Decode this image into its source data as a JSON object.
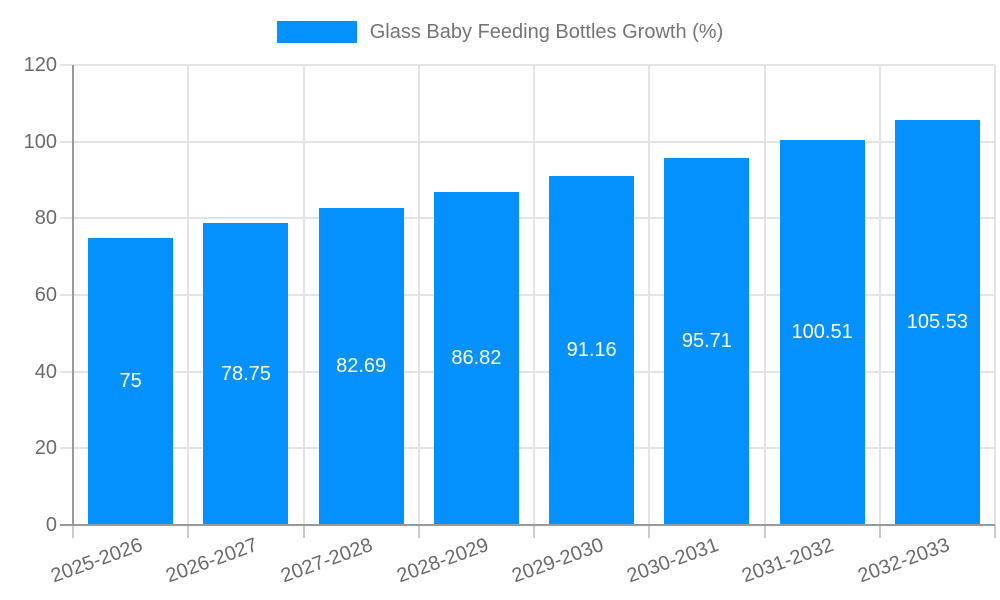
{
  "chart_data": {
    "type": "bar",
    "title": "Glass Baby Feeding Bottles Growth (%)",
    "legend": {
      "position": "top-center",
      "entries": [
        "Glass Baby Feeding Bottles Growth (%)"
      ]
    },
    "categories": [
      "2025-2026",
      "2026-2027",
      "2027-2028",
      "2028-2029",
      "2029-2030",
      "2030-2031",
      "2031-2032",
      "2032-2033"
    ],
    "values": [
      75,
      78.75,
      82.69,
      86.82,
      91.16,
      95.71,
      100.51,
      105.53
    ],
    "value_labels": [
      "75",
      "78.75",
      "82.69",
      "86.82",
      "91.16",
      "95.71",
      "100.51",
      "105.53"
    ],
    "xlabel": "",
    "ylabel": "",
    "ylim": [
      0,
      120
    ],
    "yticks": [
      0,
      20,
      40,
      60,
      80,
      100,
      120
    ],
    "grid": true,
    "x_label_rotation_deg": -20,
    "colors": {
      "bar": "#0591fc",
      "bar_value_label": "#ffffff",
      "grid_line": "#e4e4e4",
      "axis_line": "#999999",
      "tick_mark": "#cccccc",
      "axis_text": "#6b6b6b",
      "legend_text": "#757575",
      "background": "#ffffff"
    }
  }
}
